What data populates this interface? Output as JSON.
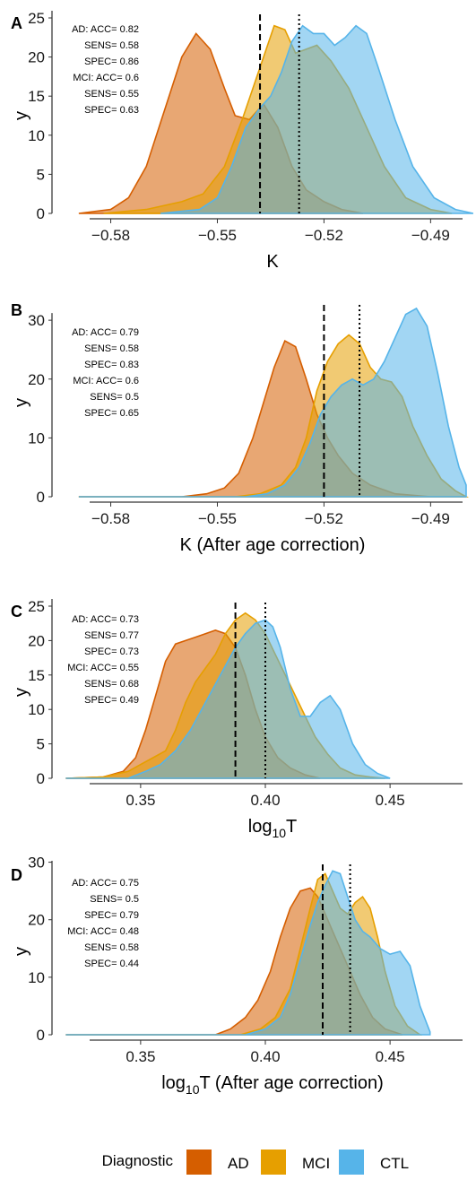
{
  "legend": {
    "title": "Diagnostic",
    "items": [
      {
        "label": "AD",
        "color": "#D55E00"
      },
      {
        "label": "MCI",
        "color": "#E69F00"
      },
      {
        "label": "CTL",
        "color": "#56B4E9"
      }
    ]
  },
  "chart_data": [
    {
      "panel": "A",
      "type": "area",
      "xlabel": "K",
      "ylabel": "y",
      "xlim": [
        -0.593,
        -0.48
      ],
      "ylim": [
        0,
        25
      ],
      "xticks": [
        -0.58,
        -0.55,
        -0.52,
        -0.49
      ],
      "xtick_labels": [
        "−0.58",
        "−0.55",
        "−0.52",
        "−0.49"
      ],
      "yticks": [
        0,
        5,
        10,
        15,
        20,
        25
      ],
      "threshold_dashed": -0.538,
      "threshold_dotted": -0.527,
      "annotations": [
        "AD: ACC= 0.82",
        "SENS= 0.58",
        "SPEC= 0.86",
        "MCI: ACC= 0.6",
        "SENS= 0.55",
        "SPEC= 0.63"
      ],
      "series": [
        {
          "name": "AD",
          "x": [
            -0.589,
            -0.58,
            -0.575,
            -0.57,
            -0.565,
            -0.56,
            -0.556,
            -0.552,
            -0.548,
            -0.545,
            -0.541,
            -0.537,
            -0.533,
            -0.529,
            -0.525,
            -0.52,
            -0.515,
            -0.509
          ],
          "values": [
            0,
            0.5,
            2,
            6,
            13,
            20,
            23,
            21,
            16,
            12.5,
            12,
            14,
            11,
            6,
            3,
            1.5,
            0.5,
            0
          ]
        },
        {
          "name": "MCI",
          "x": [
            -0.582,
            -0.57,
            -0.56,
            -0.554,
            -0.548,
            -0.543,
            -0.54,
            -0.537,
            -0.534,
            -0.531,
            -0.528,
            -0.525,
            -0.522,
            -0.518,
            -0.513,
            -0.508,
            -0.503,
            -0.497,
            -0.49,
            -0.484
          ],
          "values": [
            0,
            0.5,
            1.5,
            2.5,
            6,
            12,
            16,
            20,
            24,
            23.5,
            20.5,
            21,
            21.5,
            19.5,
            16,
            11,
            6,
            2,
            0.5,
            0
          ]
        },
        {
          "name": "CTL",
          "x": [
            -0.566,
            -0.555,
            -0.55,
            -0.546,
            -0.542,
            -0.538,
            -0.535,
            -0.532,
            -0.529,
            -0.526,
            -0.523,
            -0.52,
            -0.517,
            -0.514,
            -0.511,
            -0.508,
            -0.505,
            -0.5,
            -0.495,
            -0.489,
            -0.483,
            -0.478
          ],
          "values": [
            0,
            0.5,
            2,
            6,
            11,
            13.5,
            15,
            18,
            22,
            24,
            23,
            23,
            21.5,
            22.5,
            24,
            23,
            19,
            12,
            6,
            2,
            0.5,
            0
          ]
        }
      ]
    },
    {
      "panel": "B",
      "type": "area",
      "xlabel": "K (After age correction)",
      "ylabel": "y",
      "xlim": [
        -0.593,
        -0.48
      ],
      "ylim": [
        0,
        32
      ],
      "xticks": [
        -0.58,
        -0.55,
        -0.52,
        -0.49
      ],
      "xtick_labels": [
        "−0.58",
        "−0.55",
        "−0.52",
        "−0.49"
      ],
      "yticks": [
        0,
        10,
        20,
        30
      ],
      "threshold_dashed": -0.52,
      "threshold_dotted": -0.51,
      "annotations": [
        "AD: ACC= 0.79",
        "SENS= 0.58",
        "SPEC= 0.83",
        "MCI: ACC= 0.6",
        "SENS= 0.5",
        "SPEC= 0.65"
      ],
      "series": [
        {
          "name": "AD",
          "x": [
            -0.589,
            -0.56,
            -0.553,
            -0.548,
            -0.544,
            -0.54,
            -0.537,
            -0.534,
            -0.531,
            -0.528,
            -0.525,
            -0.522,
            -0.519,
            -0.516,
            -0.512,
            -0.507,
            -0.5,
            -0.49,
            -0.48
          ],
          "values": [
            0,
            0,
            0.5,
            1.5,
            4,
            10,
            16,
            22,
            26.5,
            25.5,
            20,
            14,
            10,
            7,
            4,
            2,
            0.5,
            0,
            0
          ]
        },
        {
          "name": "MCI",
          "x": [
            -0.589,
            -0.545,
            -0.538,
            -0.532,
            -0.528,
            -0.525,
            -0.522,
            -0.519,
            -0.516,
            -0.513,
            -0.51,
            -0.507,
            -0.504,
            -0.501,
            -0.498,
            -0.495,
            -0.491,
            -0.487,
            -0.483,
            -0.48
          ],
          "values": [
            0,
            0,
            0.5,
            2,
            5,
            10,
            18,
            23,
            26,
            27.5,
            26,
            22,
            20,
            19.5,
            17,
            12,
            7,
            3,
            1,
            0
          ]
        },
        {
          "name": "CTL",
          "x": [
            -0.589,
            -0.542,
            -0.536,
            -0.531,
            -0.527,
            -0.524,
            -0.521,
            -0.518,
            -0.515,
            -0.512,
            -0.509,
            -0.506,
            -0.503,
            -0.5,
            -0.497,
            -0.494,
            -0.491,
            -0.488,
            -0.485,
            -0.482,
            -0.48
          ],
          "values": [
            0,
            0,
            0.5,
            2,
            5,
            9,
            14,
            17,
            19,
            20,
            19,
            20,
            23,
            27,
            31,
            32,
            29,
            21,
            12,
            5,
            2
          ]
        }
      ]
    },
    {
      "panel": "C",
      "type": "area",
      "xlabel": "log10T",
      "xlabel_base": "log",
      "xlabel_sub": "10",
      "xlabel_tail": "T",
      "ylabel": "y",
      "xlim": [
        0.3195,
        0.4805
      ],
      "ylim": [
        0,
        25
      ],
      "xticks": [
        0.35,
        0.4,
        0.45
      ],
      "xtick_labels": [
        "0.35",
        "0.40",
        "0.45"
      ],
      "yticks": [
        0,
        5,
        10,
        15,
        20,
        25
      ],
      "threshold_dashed": 0.388,
      "threshold_dotted": 0.4,
      "annotations": [
        "AD: ACC= 0.73",
        "SENS= 0.77",
        "SPEC= 0.73",
        "MCI: ACC= 0.55",
        "SENS= 0.68",
        "SPEC= 0.49"
      ],
      "series": [
        {
          "name": "AD",
          "x": [
            0.32,
            0.335,
            0.343,
            0.348,
            0.352,
            0.356,
            0.36,
            0.364,
            0.368,
            0.372,
            0.376,
            0.38,
            0.384,
            0.388,
            0.392,
            0.396,
            0.4,
            0.405,
            0.41,
            0.416,
            0.422
          ],
          "values": [
            0,
            0.2,
            1,
            3,
            7,
            12,
            17,
            19.5,
            20,
            20.5,
            21,
            21.5,
            21,
            19,
            15,
            10,
            6,
            3,
            1.5,
            0.5,
            0
          ]
        },
        {
          "name": "MCI",
          "x": [
            0.32,
            0.335,
            0.345,
            0.35,
            0.355,
            0.36,
            0.364,
            0.368,
            0.372,
            0.376,
            0.38,
            0.384,
            0.388,
            0.392,
            0.396,
            0.4,
            0.404,
            0.408,
            0.412,
            0.416,
            0.42,
            0.425,
            0.43,
            0.436,
            0.442,
            0.448
          ],
          "values": [
            0,
            0.2,
            1,
            2,
            3,
            4,
            7,
            11,
            14,
            16,
            18,
            21,
            23,
            24,
            23,
            21,
            18,
            15,
            12,
            9,
            6,
            3.5,
            1.5,
            0.5,
            0.2,
            0
          ]
        },
        {
          "name": "CTL",
          "x": [
            0.32,
            0.345,
            0.352,
            0.358,
            0.364,
            0.37,
            0.376,
            0.382,
            0.388,
            0.392,
            0.396,
            0.4,
            0.403,
            0.406,
            0.41,
            0.414,
            0.418,
            0.422,
            0.426,
            0.43,
            0.435,
            0.44,
            0.445,
            0.45
          ],
          "values": [
            0,
            0,
            1,
            2,
            4,
            7,
            11,
            15,
            19,
            21,
            22.5,
            23,
            22,
            19,
            13,
            9,
            9,
            11,
            12,
            10,
            5,
            2,
            0.7,
            0
          ]
        }
      ]
    },
    {
      "panel": "D",
      "type": "area",
      "xlabel": "log10T (After age correction)",
      "xlabel_base": "log",
      "xlabel_sub": "10",
      "xlabel_tail": "T (After age correction)",
      "ylabel": "y",
      "xlim": [
        0.3195,
        0.4805
      ],
      "ylim": [
        0,
        29
      ],
      "xticks": [
        0.35,
        0.4,
        0.45
      ],
      "xtick_labels": [
        "0.35",
        "0.40",
        "0.45"
      ],
      "yticks": [
        0,
        10,
        20,
        30
      ],
      "threshold_dashed": 0.423,
      "threshold_dotted": 0.434,
      "annotations": [
        "AD: ACC= 0.75",
        "SENS= 0.5",
        "SPEC= 0.79",
        "MCI: ACC= 0.48",
        "SENS= 0.58",
        "SPEC= 0.44"
      ],
      "series": [
        {
          "name": "AD",
          "x": [
            0.32,
            0.38,
            0.386,
            0.392,
            0.397,
            0.402,
            0.406,
            0.41,
            0.414,
            0.418,
            0.421,
            0.424,
            0.427,
            0.43,
            0.434,
            0.438,
            0.443,
            0.448,
            0.455
          ],
          "values": [
            0,
            0,
            1,
            3,
            6,
            11,
            17,
            22,
            25,
            25.5,
            24,
            21,
            18,
            15,
            11,
            7,
            3,
            1,
            0
          ]
        },
        {
          "name": "MCI",
          "x": [
            0.32,
            0.39,
            0.398,
            0.404,
            0.41,
            0.414,
            0.418,
            0.421,
            0.424,
            0.427,
            0.43,
            0.433,
            0.436,
            0.439,
            0.442,
            0.445,
            0.448,
            0.452,
            0.457,
            0.462
          ],
          "values": [
            0,
            0,
            1,
            3,
            8,
            15,
            22,
            27,
            28,
            25,
            22,
            21,
            23,
            24,
            22,
            17,
            11,
            5,
            1.5,
            0
          ]
        },
        {
          "name": "CTL",
          "x": [
            0.32,
            0.392,
            0.4,
            0.406,
            0.41,
            0.414,
            0.418,
            0.421,
            0.424,
            0.427,
            0.43,
            0.433,
            0.436,
            0.439,
            0.442,
            0.446,
            0.45,
            0.454,
            0.458,
            0.462,
            0.466
          ],
          "values": [
            0,
            0,
            1,
            3,
            7,
            13,
            19,
            23,
            26,
            28.5,
            28,
            24,
            20,
            18,
            17,
            15,
            14,
            14.5,
            12,
            5,
            0.5
          ]
        }
      ]
    }
  ]
}
